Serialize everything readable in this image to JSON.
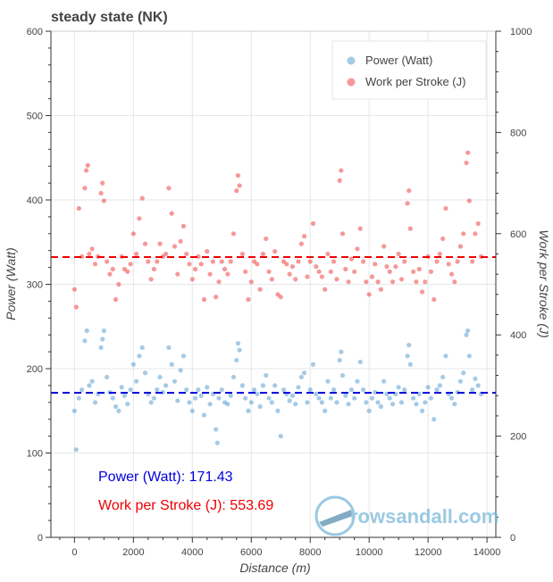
{
  "chart_data": {
    "type": "scatter",
    "title": "steady state (NK)",
    "xlabel": "Distance (m)",
    "ylabel_left": "Power (Watt)",
    "ylabel_right": "Work per Stroke (J)",
    "xlim": [
      -800,
      14300
    ],
    "ylim_left": [
      0,
      600
    ],
    "ylim_right": [
      0,
      1000
    ],
    "x_ticks": [
      0,
      2000,
      4000,
      6000,
      8000,
      10000,
      12000,
      14000
    ],
    "y_left_ticks": [
      0,
      100,
      200,
      300,
      400,
      500,
      600
    ],
    "y_right_ticks": [
      0,
      200,
      400,
      600,
      800,
      1000
    ],
    "grid": true,
    "legend_position": "top-right",
    "series": [
      {
        "name": "Power (Watt)",
        "axis": "left",
        "color": "#5b9fd0",
        "mean": 171.43,
        "points": [
          [
            0,
            150
          ],
          [
            60,
            104
          ],
          [
            150,
            165
          ],
          [
            250,
            175
          ],
          [
            350,
            233
          ],
          [
            420,
            245
          ],
          [
            500,
            180
          ],
          [
            600,
            185
          ],
          [
            700,
            160
          ],
          [
            800,
            170
          ],
          [
            900,
            225
          ],
          [
            950,
            235
          ],
          [
            1000,
            245
          ],
          [
            1100,
            190
          ],
          [
            1200,
            172
          ],
          [
            1300,
            165
          ],
          [
            1400,
            155
          ],
          [
            1500,
            150
          ],
          [
            1600,
            178
          ],
          [
            1700,
            168
          ],
          [
            1800,
            158
          ],
          [
            1900,
            175
          ],
          [
            2000,
            205
          ],
          [
            2100,
            185
          ],
          [
            2200,
            215
          ],
          [
            2300,
            225
          ],
          [
            2400,
            195
          ],
          [
            2500,
            170
          ],
          [
            2600,
            160
          ],
          [
            2700,
            165
          ],
          [
            2800,
            175
          ],
          [
            2900,
            190
          ],
          [
            3000,
            172
          ],
          [
            3100,
            180
          ],
          [
            3200,
            225
          ],
          [
            3300,
            205
          ],
          [
            3400,
            185
          ],
          [
            3500,
            162
          ],
          [
            3600,
            198
          ],
          [
            3700,
            215
          ],
          [
            3800,
            175
          ],
          [
            3900,
            160
          ],
          [
            4000,
            150
          ],
          [
            4100,
            165
          ],
          [
            4200,
            175
          ],
          [
            4300,
            168
          ],
          [
            4400,
            145
          ],
          [
            4500,
            178
          ],
          [
            4600,
            158
          ],
          [
            4700,
            170
          ],
          [
            4800,
            128
          ],
          [
            4850,
            112
          ],
          [
            4900,
            165
          ],
          [
            5000,
            175
          ],
          [
            5100,
            160
          ],
          [
            5200,
            158
          ],
          [
            5300,
            168
          ],
          [
            5400,
            190
          ],
          [
            5500,
            210
          ],
          [
            5550,
            230
          ],
          [
            5600,
            222
          ],
          [
            5700,
            180
          ],
          [
            5800,
            165
          ],
          [
            5900,
            150
          ],
          [
            6000,
            160
          ],
          [
            6100,
            175
          ],
          [
            6200,
            170
          ],
          [
            6300,
            155
          ],
          [
            6400,
            180
          ],
          [
            6500,
            192
          ],
          [
            6600,
            165
          ],
          [
            6700,
            160
          ],
          [
            6800,
            180
          ],
          [
            6900,
            150
          ],
          [
            7000,
            120
          ],
          [
            7100,
            175
          ],
          [
            7200,
            170
          ],
          [
            7300,
            162
          ],
          [
            7400,
            168
          ],
          [
            7500,
            158
          ],
          [
            7600,
            178
          ],
          [
            7700,
            190
          ],
          [
            7800,
            195
          ],
          [
            7900,
            160
          ],
          [
            8000,
            175
          ],
          [
            8100,
            205
          ],
          [
            8200,
            170
          ],
          [
            8300,
            165
          ],
          [
            8400,
            160
          ],
          [
            8500,
            150
          ],
          [
            8600,
            185
          ],
          [
            8700,
            165
          ],
          [
            8800,
            175
          ],
          [
            8900,
            160
          ],
          [
            9000,
            210
          ],
          [
            9050,
            220
          ],
          [
            9100,
            192
          ],
          [
            9200,
            168
          ],
          [
            9300,
            158
          ],
          [
            9400,
            175
          ],
          [
            9500,
            165
          ],
          [
            9600,
            185
          ],
          [
            9700,
            208
          ],
          [
            9800,
            175
          ],
          [
            9900,
            160
          ],
          [
            10000,
            150
          ],
          [
            10100,
            165
          ],
          [
            10200,
            172
          ],
          [
            10300,
            160
          ],
          [
            10400,
            155
          ],
          [
            10500,
            185
          ],
          [
            10600,
            170
          ],
          [
            10700,
            165
          ],
          [
            10800,
            158
          ],
          [
            10900,
            170
          ],
          [
            11000,
            178
          ],
          [
            11100,
            160
          ],
          [
            11200,
            175
          ],
          [
            11300,
            215
          ],
          [
            11350,
            228
          ],
          [
            11400,
            205
          ],
          [
            11500,
            165
          ],
          [
            11600,
            158
          ],
          [
            11700,
            170
          ],
          [
            11800,
            150
          ],
          [
            11900,
            160
          ],
          [
            12000,
            178
          ],
          [
            12100,
            165
          ],
          [
            12200,
            140
          ],
          [
            12300,
            175
          ],
          [
            12400,
            180
          ],
          [
            12500,
            190
          ],
          [
            12600,
            215
          ],
          [
            12700,
            170
          ],
          [
            12800,
            165
          ],
          [
            12900,
            158
          ],
          [
            13000,
            172
          ],
          [
            13100,
            185
          ],
          [
            13200,
            195
          ],
          [
            13300,
            240
          ],
          [
            13350,
            245
          ],
          [
            13400,
            215
          ],
          [
            13500,
            175
          ],
          [
            13600,
            188
          ],
          [
            13700,
            180
          ],
          [
            13800,
            170
          ]
        ]
      },
      {
        "name": "Work per Stroke (J)",
        "axis": "right",
        "color": "#ee4444",
        "mean": 553.69,
        "points": [
          [
            0,
            490
          ],
          [
            60,
            455
          ],
          [
            150,
            650
          ],
          [
            250,
            555
          ],
          [
            350,
            690
          ],
          [
            400,
            725
          ],
          [
            450,
            735
          ],
          [
            500,
            560
          ],
          [
            600,
            570
          ],
          [
            700,
            540
          ],
          [
            800,
            555
          ],
          [
            900,
            680
          ],
          [
            950,
            700
          ],
          [
            1000,
            665
          ],
          [
            1100,
            545
          ],
          [
            1200,
            520
          ],
          [
            1300,
            530
          ],
          [
            1400,
            470
          ],
          [
            1500,
            500
          ],
          [
            1600,
            555
          ],
          [
            1700,
            530
          ],
          [
            1800,
            525
          ],
          [
            1900,
            540
          ],
          [
            2000,
            600
          ],
          [
            2100,
            560
          ],
          [
            2200,
            630
          ],
          [
            2300,
            670
          ],
          [
            2400,
            580
          ],
          [
            2500,
            545
          ],
          [
            2600,
            510
          ],
          [
            2700,
            530
          ],
          [
            2800,
            545
          ],
          [
            2900,
            580
          ],
          [
            3000,
            555
          ],
          [
            3100,
            560
          ],
          [
            3200,
            690
          ],
          [
            3300,
            640
          ],
          [
            3400,
            575
          ],
          [
            3500,
            520
          ],
          [
            3600,
            585
          ],
          [
            3700,
            615
          ],
          [
            3800,
            560
          ],
          [
            3900,
            540
          ],
          [
            4000,
            510
          ],
          [
            4100,
            530
          ],
          [
            4200,
            555
          ],
          [
            4300,
            540
          ],
          [
            4400,
            470
          ],
          [
            4500,
            565
          ],
          [
            4600,
            520
          ],
          [
            4700,
            545
          ],
          [
            4800,
            475
          ],
          [
            4900,
            505
          ],
          [
            5000,
            545
          ],
          [
            5100,
            530
          ],
          [
            5200,
            520
          ],
          [
            5300,
            545
          ],
          [
            5400,
            600
          ],
          [
            5500,
            685
          ],
          [
            5550,
            715
          ],
          [
            5600,
            695
          ],
          [
            5700,
            560
          ],
          [
            5800,
            525
          ],
          [
            5900,
            470
          ],
          [
            6000,
            505
          ],
          [
            6100,
            545
          ],
          [
            6200,
            540
          ],
          [
            6300,
            490
          ],
          [
            6400,
            560
          ],
          [
            6500,
            590
          ],
          [
            6600,
            525
          ],
          [
            6700,
            510
          ],
          [
            6800,
            565
          ],
          [
            6900,
            480
          ],
          [
            7000,
            475
          ],
          [
            7100,
            545
          ],
          [
            7200,
            540
          ],
          [
            7300,
            520
          ],
          [
            7400,
            535
          ],
          [
            7500,
            510
          ],
          [
            7600,
            545
          ],
          [
            7700,
            580
          ],
          [
            7800,
            595
          ],
          [
            7900,
            515
          ],
          [
            8000,
            545
          ],
          [
            8100,
            620
          ],
          [
            8200,
            535
          ],
          [
            8300,
            525
          ],
          [
            8400,
            515
          ],
          [
            8500,
            490
          ],
          [
            8600,
            560
          ],
          [
            8700,
            525
          ],
          [
            8800,
            545
          ],
          [
            8900,
            510
          ],
          [
            9000,
            705
          ],
          [
            9050,
            725
          ],
          [
            9100,
            600
          ],
          [
            9200,
            530
          ],
          [
            9300,
            505
          ],
          [
            9400,
            550
          ],
          [
            9500,
            525
          ],
          [
            9600,
            570
          ],
          [
            9700,
            610
          ],
          [
            9800,
            545
          ],
          [
            9900,
            505
          ],
          [
            10000,
            480
          ],
          [
            10100,
            515
          ],
          [
            10200,
            540
          ],
          [
            10300,
            505
          ],
          [
            10400,
            490
          ],
          [
            10500,
            575
          ],
          [
            10600,
            535
          ],
          [
            10700,
            525
          ],
          [
            10800,
            505
          ],
          [
            10900,
            535
          ],
          [
            11000,
            560
          ],
          [
            11100,
            510
          ],
          [
            11200,
            545
          ],
          [
            11300,
            660
          ],
          [
            11350,
            685
          ],
          [
            11400,
            610
          ],
          [
            11500,
            525
          ],
          [
            11600,
            505
          ],
          [
            11700,
            530
          ],
          [
            11800,
            485
          ],
          [
            11900,
            505
          ],
          [
            12000,
            555
          ],
          [
            12100,
            525
          ],
          [
            12200,
            470
          ],
          [
            12300,
            545
          ],
          [
            12400,
            560
          ],
          [
            12500,
            590
          ],
          [
            12600,
            650
          ],
          [
            12700,
            540
          ],
          [
            12800,
            520
          ],
          [
            12900,
            505
          ],
          [
            13000,
            545
          ],
          [
            13100,
            575
          ],
          [
            13200,
            600
          ],
          [
            13300,
            740
          ],
          [
            13350,
            760
          ],
          [
            13400,
            665
          ],
          [
            13500,
            545
          ],
          [
            13600,
            600
          ],
          [
            13700,
            620
          ],
          [
            13800,
            555
          ]
        ]
      }
    ],
    "annotations": [
      {
        "text": "Power (Watt): 171.43",
        "color": "#0000dd"
      },
      {
        "text": "Work per Stroke (J): 553.69",
        "color": "#ee0000"
      }
    ]
  },
  "brand": {
    "logo_text": "rowsandall.com"
  }
}
